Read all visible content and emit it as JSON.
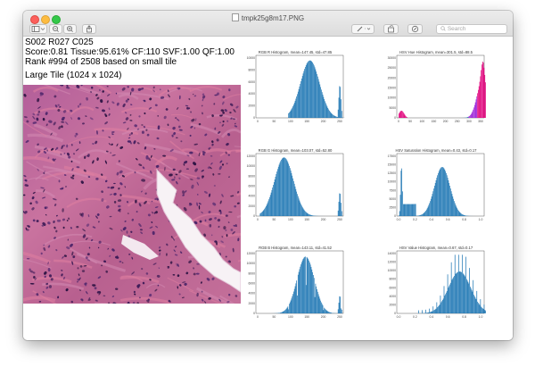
{
  "window": {
    "title": "tmpk25g8m17.PNG",
    "search_placeholder": "Search"
  },
  "toolbar": {
    "sidebar_icon": "sidebar-icon",
    "zoom_out_icon": "zoom-out-icon",
    "zoom_in_icon": "zoom-in-icon",
    "share_icon": "share-icon",
    "markup_icon": "pen-icon",
    "rotate_icon": "rotate-icon",
    "annotate_icon": "annotate-icon"
  },
  "info": {
    "line1": "S002 R027 C025",
    "line2": "Score:0.81 Tissue:95.61% CF:110 SVF:1.00 QF:1.00",
    "line3": "Rank #994 of 2508 based on small tile",
    "tile_label": "Large Tile (1024 x 1024)"
  },
  "colors": {
    "histogram_bar": "#1f77b4",
    "hue_magenta": "#e0007a",
    "tissue_pink": "#c46a9a",
    "tissue_dark": "#5a2a66"
  },
  "histograms": [
    {
      "id": "rgb-r",
      "title": "RGB R Histogram, mean=147.45, std=47.85",
      "x_ticks": [
        "0",
        "50",
        "100",
        "150",
        "200",
        "250"
      ],
      "y_ticks": [
        "0",
        "2000",
        "4000",
        "6000",
        "8000",
        "10000"
      ]
    },
    {
      "id": "hsv-hue",
      "title": "HSV Hue Histogram, mean=301.5, std=88.5",
      "x_ticks": [
        "0",
        "50",
        "100",
        "150",
        "200",
        "250",
        "300",
        "350"
      ],
      "y_ticks": [
        "0",
        "5000",
        "10000",
        "15000",
        "20000",
        "25000",
        "30000"
      ]
    },
    {
      "id": "rgb-g",
      "title": "RGB G Histogram, mean=103.07, std=52.80",
      "x_ticks": [
        "0",
        "50",
        "100",
        "150",
        "200",
        "250"
      ],
      "y_ticks": [
        "0",
        "2000",
        "4000",
        "6000",
        "8000",
        "10000",
        "12000"
      ]
    },
    {
      "id": "hsv-sat",
      "title": "HSV Saturation Histogram, mean=0.43, std=0.17",
      "x_ticks": [
        "0.0",
        "0.2",
        "0.4",
        "0.6",
        "0.8",
        "1.0"
      ],
      "y_ticks": [
        "0",
        "2500",
        "5000",
        "7500",
        "10000",
        "12500",
        "15000",
        "17500"
      ]
    },
    {
      "id": "rgb-b",
      "title": "RGB B Histogram, mean=143.11, std=41.52",
      "x_ticks": [
        "0",
        "50",
        "100",
        "150",
        "200",
        "250"
      ],
      "y_ticks": [
        "0",
        "2000",
        "4000",
        "6000",
        "8000",
        "10000",
        "12000"
      ]
    },
    {
      "id": "hsv-val",
      "title": "HSV Value Histogram, mean=0.67, std=0.17",
      "x_ticks": [
        "0.0",
        "0.2",
        "0.4",
        "0.6",
        "0.8",
        "1.0"
      ],
      "y_ticks": [
        "0",
        "2000",
        "4000",
        "6000",
        "8000",
        "10000",
        "12000",
        "14000"
      ]
    }
  ]
}
